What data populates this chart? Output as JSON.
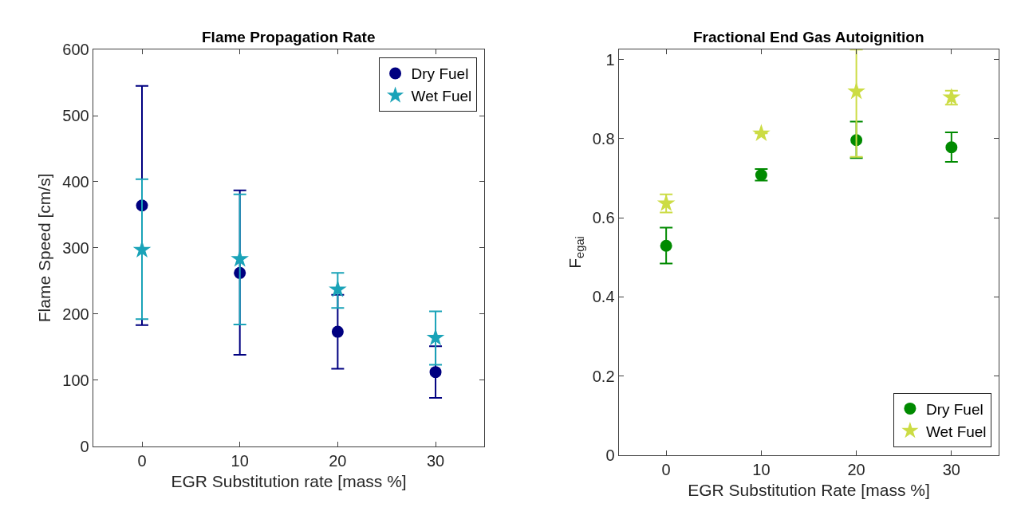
{
  "chart_data": [
    {
      "type": "scatter",
      "title": "Flame Propagation Rate",
      "xlabel": "EGR Substitution rate [mass %]",
      "ylabel": "Flame Speed [cm/s]",
      "x": [
        0,
        10,
        20,
        30
      ],
      "xlim": [
        -5,
        35
      ],
      "xticks": [
        0,
        10,
        20,
        30
      ],
      "ylim": [
        0,
        600
      ],
      "yticks": [
        0,
        100,
        200,
        300,
        400,
        500,
        600
      ],
      "legend": "top right",
      "series": [
        {
          "name": "Dry Fuel",
          "color": "#000080",
          "marker": "circle",
          "values": [
            364,
            262,
            173,
            112
          ],
          "errors": [
            [
              183,
              545
            ],
            [
              138,
              387
            ],
            [
              117,
              229
            ],
            [
              73,
              151
            ]
          ]
        },
        {
          "name": "Wet Fuel",
          "color": "#1aa3b8",
          "marker": "star",
          "values": [
            297,
            283,
            237,
            164
          ],
          "errors": [
            [
              192,
              404
            ],
            [
              184,
              381
            ],
            [
              209,
              262
            ],
            [
              123,
              204
            ]
          ]
        }
      ]
    },
    {
      "type": "scatter",
      "title": "Fractional End Gas Autoignition",
      "xlabel": "EGR Substitution Rate [mass %]",
      "ylabel": "F$_{egai}$",
      "x": [
        0,
        10,
        20,
        30
      ],
      "xlim": [
        -5,
        35
      ],
      "xticks": [
        0,
        10,
        20,
        30
      ],
      "ylim": [
        0,
        1.025
      ],
      "yticks": [
        0,
        0.2,
        0.4,
        0.6,
        0.8,
        1
      ],
      "legend": "bottom right",
      "series": [
        {
          "name": "Dry Fuel",
          "color": "#008a00",
          "marker": "circle",
          "values": [
            0.529,
            0.708,
            0.796,
            0.778
          ],
          "errors": [
            [
              0.484,
              0.575
            ],
            [
              0.694,
              0.723
            ],
            [
              0.751,
              0.843
            ],
            [
              0.741,
              0.816
            ]
          ]
        },
        {
          "name": "Wet Fuel",
          "color": "#ccdc44",
          "marker": "star",
          "values": [
            0.636,
            0.813,
            0.919,
            0.904
          ],
          "errors": [
            [
              0.613,
              0.659
            ],
            null,
            [
              0.754,
              1.025
            ],
            [
              0.886,
              0.921
            ]
          ]
        }
      ]
    }
  ]
}
